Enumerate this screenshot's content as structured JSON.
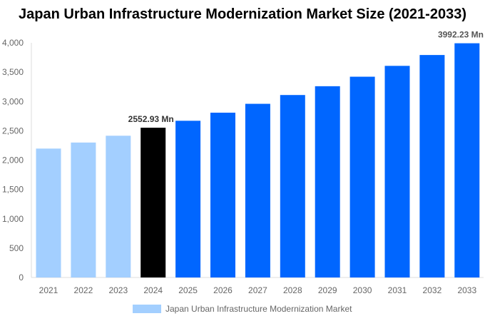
{
  "chart_data": {
    "type": "bar",
    "title": "Japan Urban Infrastructure Modernization Market Size (2021-2033)",
    "categories": [
      "2021",
      "2022",
      "2023",
      "2024",
      "2025",
      "2026",
      "2027",
      "2028",
      "2029",
      "2030",
      "2031",
      "2032",
      "2033"
    ],
    "series": [
      {
        "name": "Japan Urban Infrastructure Modernization Market",
        "values": [
          2197,
          2300,
          2416,
          2552.93,
          2671,
          2809,
          2960,
          3110,
          3260,
          3422,
          3607,
          3792,
          3992.23
        ]
      }
    ],
    "bar_colors": [
      "#a3cfff",
      "#a3cfff",
      "#a3cfff",
      "#000000",
      "#0066ff",
      "#0066ff",
      "#0066ff",
      "#0066ff",
      "#0066ff",
      "#0066ff",
      "#0066ff",
      "#0066ff",
      "#0066ff"
    ],
    "data_labels": {
      "3": "2552.93 Mn",
      "12": "3992.23 Mn"
    },
    "yticks": [
      "0",
      "500",
      "1,000",
      "1,500",
      "2,000",
      "2,500",
      "3,000",
      "3,500",
      "4,000"
    ],
    "ylim": [
      0,
      4000
    ],
    "grid": false,
    "legend": "bottom"
  }
}
